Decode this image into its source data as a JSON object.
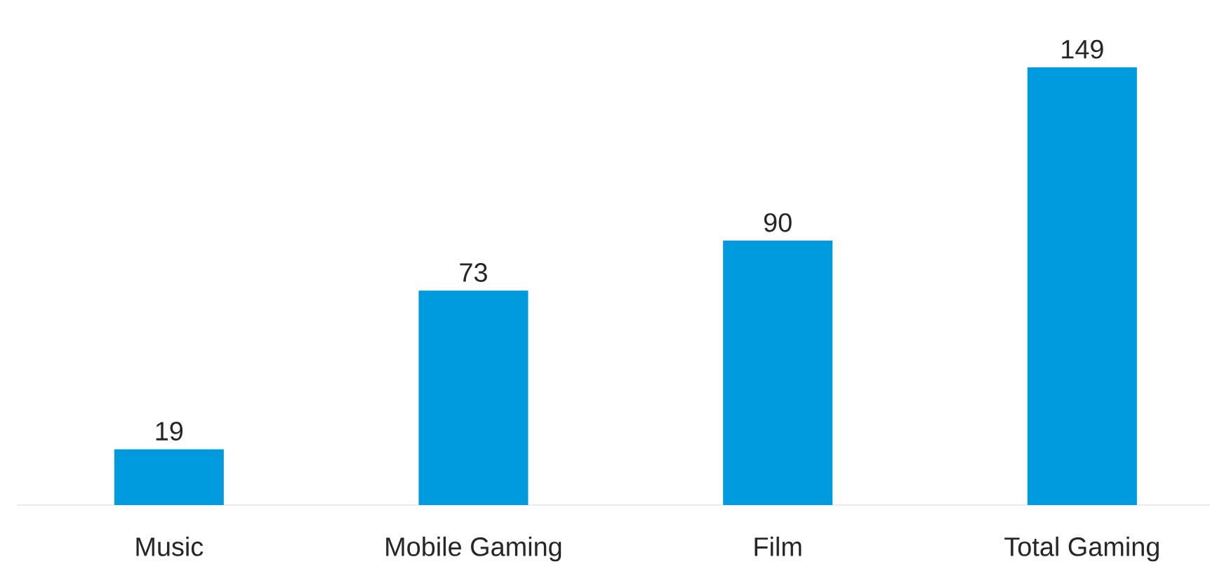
{
  "chart_data": {
    "type": "bar",
    "categories": [
      "Music",
      "Mobile Gaming",
      "Film",
      "Total Gaming"
    ],
    "values": [
      19,
      73,
      90,
      149
    ],
    "color": "#009ade",
    "data_labels": true
  }
}
